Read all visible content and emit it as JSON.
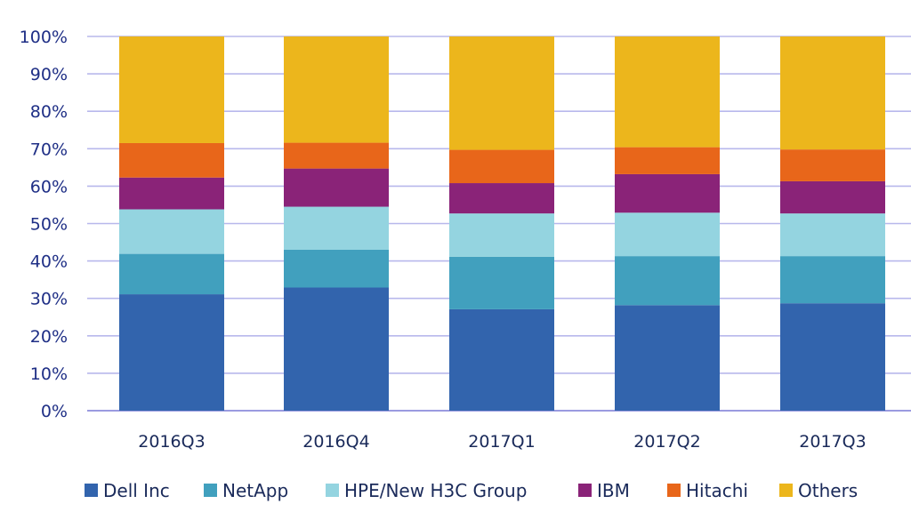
{
  "chart_data": {
    "type": "bar",
    "stacked": true,
    "percent": true,
    "categories": [
      "2016Q3",
      "2016Q4",
      "2017Q1",
      "2017Q2",
      "2017Q3"
    ],
    "y_tick_labels": [
      "0%",
      "10%",
      "20%",
      "30%",
      "40%",
      "50%",
      "60%",
      "70%",
      "80%",
      "90%",
      "100%"
    ],
    "ylim": [
      0,
      100
    ],
    "grid": true,
    "legend_position": "bottom",
    "series": [
      {
        "name": "Dell Inc",
        "color": "#3264ad",
        "values": [
          31.1,
          32.9,
          27.1,
          28.2,
          28.7
        ]
      },
      {
        "name": "NetApp",
        "color": "#41a0be",
        "values": [
          10.8,
          10.1,
          14.0,
          13.1,
          12.6
        ]
      },
      {
        "name": "HPE/New H3C Group",
        "color": "#94d4e0",
        "values": [
          11.9,
          11.5,
          11.6,
          11.6,
          11.4
        ]
      },
      {
        "name": "IBM",
        "color": "#8a2378",
        "values": [
          8.5,
          10.2,
          8.1,
          10.3,
          8.6
        ]
      },
      {
        "name": "Hitachi",
        "color": "#e8661a",
        "values": [
          9.2,
          6.9,
          8.9,
          7.2,
          8.5
        ]
      },
      {
        "name": "Others",
        "color": "#ecb61c",
        "values": [
          28.5,
          28.4,
          30.3,
          29.6,
          30.2
        ]
      }
    ]
  }
}
